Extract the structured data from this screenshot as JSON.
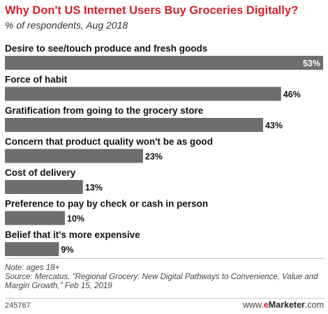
{
  "header": {
    "title": "Why Don't US Internet Users Buy Groceries Digitally?",
    "subtitle": "% of respondents, Aug 2018"
  },
  "chart_data": {
    "type": "bar",
    "orientation": "horizontal",
    "title": "Why Don't US Internet Users Buy Groceries Digitally?",
    "subtitle": "% of respondents, Aug 2018",
    "categories": [
      "Desire to see/touch produce and fresh goods",
      "Force of habit",
      "Gratification from going to the grocery store",
      "Concern that product quality won't be as good",
      "Cost of delivery",
      "Preference to pay by check or cash in person",
      "Belief that it's more expensive"
    ],
    "values": [
      53,
      46,
      43,
      23,
      13,
      10,
      9
    ],
    "value_labels": [
      "53%",
      "46%",
      "43%",
      "23%",
      "13%",
      "10%",
      "9%"
    ],
    "xlim": [
      0,
      53
    ],
    "grid": false,
    "bar_color": "#6e6e6e"
  },
  "footer": {
    "note": "Note: ages 18+",
    "source": "Source: Mercatus, \"Regional Grocery: New Digital Pathways to Convenience, Value and Margin Growth,\" Feb 15, 2019",
    "id": "245767",
    "brand_prefix": "www.",
    "brand_e": "e",
    "brand_name": "Marketer",
    "brand_suffix": ".com"
  }
}
